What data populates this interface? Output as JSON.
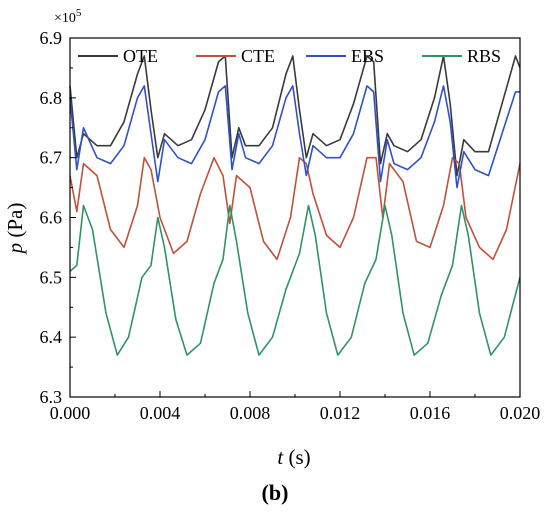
{
  "chart_data": {
    "type": "line",
    "panel_label": "(b)",
    "xlabel_symbol": "t",
    "xlabel_unit": " (s)",
    "ylabel_symbol": "p",
    "ylabel_unit": " (Pa)",
    "y_multiplier": "×10",
    "y_multiplier_exp": "5",
    "xlim": [
      0,
      0.02
    ],
    "ylim": [
      6.3,
      6.9
    ],
    "x_ticks": [
      "0.000",
      "0.004",
      "0.008",
      "0.012",
      "0.016",
      "0.020"
    ],
    "y_ticks": [
      "6.3",
      "6.4",
      "6.5",
      "6.6",
      "6.7",
      "6.8",
      "6.9"
    ],
    "x_tick_values": [
      0,
      0.004,
      0.008,
      0.012,
      0.016,
      0.02
    ],
    "y_tick_values": [
      6.3,
      6.4,
      6.5,
      6.6,
      6.7,
      6.8,
      6.9
    ],
    "legend_position": "top",
    "series": [
      {
        "name": "OTE",
        "color": "#3a3a3a",
        "x": [
          0,
          0.0003,
          0.0006,
          0.0012,
          0.0018,
          0.0024,
          0.003,
          0.0033,
          0.0036,
          0.0039,
          0.0042,
          0.0048,
          0.0054,
          0.006,
          0.0066,
          0.0069,
          0.0072,
          0.0075,
          0.0078,
          0.0084,
          0.009,
          0.0096,
          0.0099,
          0.0102,
          0.0105,
          0.0108,
          0.0114,
          0.012,
          0.0126,
          0.0132,
          0.0135,
          0.0138,
          0.0141,
          0.0144,
          0.015,
          0.0156,
          0.0162,
          0.0166,
          0.0169,
          0.0172,
          0.0175,
          0.018,
          0.0186,
          0.0192,
          0.0198,
          0.02
        ],
        "y": [
          6.82,
          6.7,
          6.74,
          6.72,
          6.72,
          6.76,
          6.84,
          6.87,
          6.78,
          6.7,
          6.74,
          6.72,
          6.73,
          6.78,
          6.86,
          6.87,
          6.7,
          6.75,
          6.72,
          6.72,
          6.75,
          6.84,
          6.87,
          6.78,
          6.7,
          6.74,
          6.72,
          6.73,
          6.79,
          6.87,
          6.86,
          6.69,
          6.74,
          6.72,
          6.71,
          6.73,
          6.8,
          6.87,
          6.79,
          6.67,
          6.73,
          6.71,
          6.71,
          6.79,
          6.87,
          6.85
        ]
      },
      {
        "name": "CTE",
        "color": "#c0513a",
        "x": [
          0,
          0.0003,
          0.0006,
          0.0012,
          0.0018,
          0.0024,
          0.003,
          0.0033,
          0.0036,
          0.004,
          0.0046,
          0.0052,
          0.0058,
          0.0064,
          0.0068,
          0.0071,
          0.0074,
          0.008,
          0.0086,
          0.0092,
          0.0098,
          0.0102,
          0.0105,
          0.0108,
          0.0114,
          0.012,
          0.0126,
          0.0132,
          0.0136,
          0.0139,
          0.0142,
          0.0148,
          0.0154,
          0.016,
          0.0166,
          0.017,
          0.0173,
          0.0176,
          0.0182,
          0.0188,
          0.0194,
          0.02
        ],
        "y": [
          6.67,
          6.61,
          6.69,
          6.67,
          6.58,
          6.55,
          6.62,
          6.7,
          6.68,
          6.6,
          6.54,
          6.56,
          6.64,
          6.7,
          6.67,
          6.59,
          6.67,
          6.65,
          6.56,
          6.53,
          6.6,
          6.7,
          6.69,
          6.64,
          6.57,
          6.55,
          6.6,
          6.7,
          6.7,
          6.6,
          6.69,
          6.66,
          6.56,
          6.55,
          6.62,
          6.7,
          6.69,
          6.6,
          6.55,
          6.53,
          6.58,
          6.69
        ]
      },
      {
        "name": "EBS",
        "color": "#2f52c9",
        "x": [
          0,
          0.0003,
          0.0006,
          0.0012,
          0.0018,
          0.0024,
          0.003,
          0.0033,
          0.0036,
          0.0039,
          0.0042,
          0.0048,
          0.0054,
          0.006,
          0.0066,
          0.0069,
          0.0072,
          0.0075,
          0.0078,
          0.0084,
          0.009,
          0.0096,
          0.0099,
          0.0102,
          0.0105,
          0.0108,
          0.0114,
          0.012,
          0.0126,
          0.0132,
          0.0135,
          0.0138,
          0.0141,
          0.0144,
          0.015,
          0.0156,
          0.0162,
          0.0166,
          0.0169,
          0.0172,
          0.0175,
          0.018,
          0.0186,
          0.0192,
          0.0198,
          0.02
        ],
        "y": [
          6.8,
          6.68,
          6.75,
          6.7,
          6.69,
          6.72,
          6.8,
          6.82,
          6.74,
          6.66,
          6.73,
          6.7,
          6.69,
          6.73,
          6.81,
          6.82,
          6.68,
          6.74,
          6.7,
          6.69,
          6.72,
          6.8,
          6.82,
          6.74,
          6.67,
          6.72,
          6.7,
          6.7,
          6.74,
          6.82,
          6.81,
          6.66,
          6.73,
          6.69,
          6.68,
          6.7,
          6.76,
          6.82,
          6.76,
          6.65,
          6.71,
          6.68,
          6.67,
          6.74,
          6.81,
          6.81
        ]
      },
      {
        "name": "RBS",
        "color": "#2e9466",
        "x": [
          0,
          0.0003,
          0.0006,
          0.001,
          0.0016,
          0.0021,
          0.0026,
          0.0032,
          0.0036,
          0.0039,
          0.0042,
          0.0047,
          0.0052,
          0.0058,
          0.0064,
          0.0068,
          0.0071,
          0.0074,
          0.0079,
          0.0084,
          0.009,
          0.0096,
          0.0102,
          0.0106,
          0.0109,
          0.0114,
          0.0119,
          0.0125,
          0.0131,
          0.0136,
          0.014,
          0.0143,
          0.0148,
          0.0153,
          0.0159,
          0.0165,
          0.017,
          0.0174,
          0.0177,
          0.0182,
          0.0187,
          0.0193,
          0.02
        ],
        "y": [
          6.51,
          6.52,
          6.62,
          6.58,
          6.44,
          6.37,
          6.4,
          6.5,
          6.52,
          6.6,
          6.55,
          6.43,
          6.37,
          6.39,
          6.49,
          6.53,
          6.62,
          6.56,
          6.44,
          6.37,
          6.4,
          6.48,
          6.54,
          6.62,
          6.57,
          6.44,
          6.37,
          6.4,
          6.49,
          6.53,
          6.62,
          6.57,
          6.44,
          6.37,
          6.39,
          6.47,
          6.52,
          6.62,
          6.57,
          6.44,
          6.37,
          6.4,
          6.5
        ]
      }
    ]
  }
}
